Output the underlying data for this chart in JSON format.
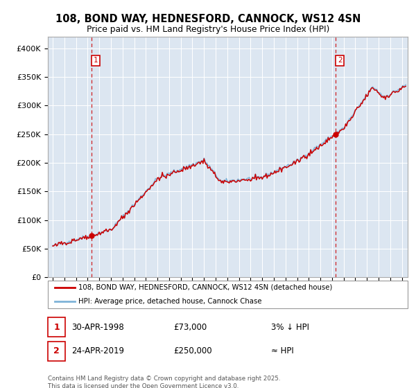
{
  "title_line1": "108, BOND WAY, HEDNESFORD, CANNOCK, WS12 4SN",
  "title_line2": "Price paid vs. HM Land Registry's House Price Index (HPI)",
  "ylim": [
    0,
    420000
  ],
  "yticks": [
    0,
    50000,
    100000,
    150000,
    200000,
    250000,
    300000,
    350000,
    400000
  ],
  "ytick_labels": [
    "£0",
    "£50K",
    "£100K",
    "£150K",
    "£200K",
    "£250K",
    "£300K",
    "£350K",
    "£400K"
  ],
  "xlim_start": 1994.58,
  "xlim_end": 2025.5,
  "plot_bg_color": "#dce6f1",
  "hpi_line_color": "#7fb3d8",
  "price_line_color": "#cc0000",
  "purchase1_year": 1998.33,
  "purchase1_price": 73000,
  "purchase1_label": "1",
  "purchase2_year": 2019.32,
  "purchase2_price": 250000,
  "purchase2_label": "2",
  "legend_label1": "108, BOND WAY, HEDNESFORD, CANNOCK, WS12 4SN (detached house)",
  "legend_label2": "HPI: Average price, detached house, Cannock Chase",
  "note1_date": "30-APR-1998",
  "note1_price": "£73,000",
  "note1_pct": "3% ↓ HPI",
  "note2_date": "24-APR-2019",
  "note2_price": "£250,000",
  "note2_pct": "≈ HPI",
  "copyright_text": "Contains HM Land Registry data © Crown copyright and database right 2025.\nThis data is licensed under the Open Government Licence v3.0."
}
